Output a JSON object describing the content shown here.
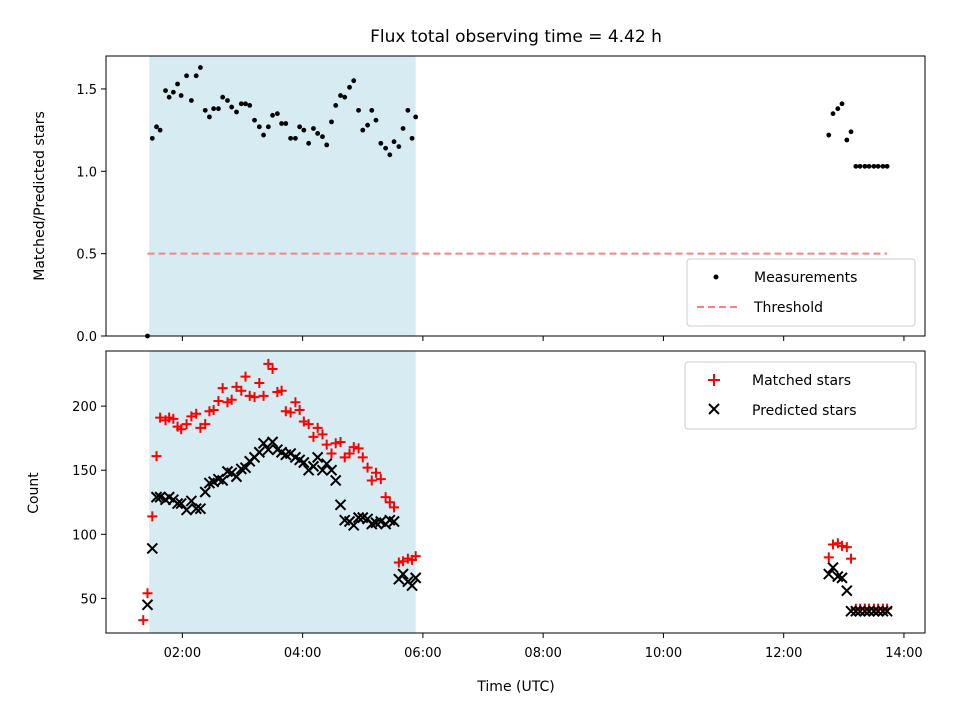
{
  "chart_data": [
    {
      "type": "scatter",
      "title": "Flux total observing time = 4.42 h",
      "ylabel": "Matched/Predicted stars",
      "xlabel": "",
      "x_unit": "hours (UTC)",
      "xlim": [
        0.73,
        14.35
      ],
      "ylim": [
        0,
        1.7
      ],
      "yticks": [
        0.0,
        0.5,
        1.0,
        1.5
      ],
      "ytick_labels": [
        "0.0",
        "0.5",
        "1.0",
        "1.5"
      ],
      "shaded_interval": [
        1.45,
        5.88
      ],
      "shade_color": "#add8e6",
      "grid": false,
      "legend_position": "lower-right",
      "series": [
        {
          "name": "Measurements",
          "marker": "dot",
          "color": "#000000",
          "x": [
            1.42,
            1.5,
            1.57,
            1.63,
            1.72,
            1.78,
            1.85,
            1.92,
            1.98,
            2.07,
            2.15,
            2.23,
            2.3,
            2.38,
            2.45,
            2.52,
            2.6,
            2.67,
            2.75,
            2.82,
            2.9,
            2.98,
            3.05,
            3.12,
            3.2,
            3.28,
            3.35,
            3.43,
            3.5,
            3.58,
            3.65,
            3.72,
            3.8,
            3.88,
            3.95,
            4.02,
            4.1,
            4.18,
            4.25,
            4.33,
            4.4,
            4.48,
            4.55,
            4.63,
            4.7,
            4.78,
            4.85,
            4.93,
            5.0,
            5.08,
            5.15,
            5.22,
            5.3,
            5.38,
            5.45,
            5.52,
            5.6,
            5.67,
            5.75,
            5.82,
            5.88,
            12.75,
            12.82,
            12.9,
            12.97,
            13.05,
            13.12,
            13.2,
            13.27,
            13.35,
            13.42,
            13.5,
            13.57,
            13.65,
            13.72
          ],
          "y": [
            0.0,
            1.2,
            1.27,
            1.25,
            1.49,
            1.45,
            1.48,
            1.53,
            1.46,
            1.58,
            1.43,
            1.58,
            1.63,
            1.37,
            1.33,
            1.38,
            1.38,
            1.45,
            1.43,
            1.39,
            1.36,
            1.41,
            1.41,
            1.4,
            1.31,
            1.27,
            1.22,
            1.27,
            1.34,
            1.35,
            1.29,
            1.29,
            1.2,
            1.2,
            1.27,
            1.25,
            1.17,
            1.26,
            1.23,
            1.21,
            1.16,
            1.3,
            1.4,
            1.46,
            1.45,
            1.51,
            1.55,
            1.37,
            1.25,
            1.28,
            1.37,
            1.31,
            1.17,
            1.14,
            1.1,
            1.18,
            1.15,
            1.26,
            1.37,
            1.2,
            1.33,
            1.22,
            1.35,
            1.38,
            1.41,
            1.19,
            1.24,
            1.03,
            1.03,
            1.03,
            1.03,
            1.03,
            1.03,
            1.03,
            1.03
          ]
        },
        {
          "name": "Threshold",
          "marker": "dashed-line",
          "color": "#ff7f7f",
          "x": [
            1.42,
            13.72
          ],
          "y": [
            0.5,
            0.5
          ]
        }
      ]
    },
    {
      "type": "scatter",
      "title": "",
      "ylabel": "Count",
      "xlabel": "Time (UTC)",
      "x_unit": "hours (UTC)",
      "xlim": [
        0.73,
        14.35
      ],
      "ylim": [
        23,
        243
      ],
      "yticks": [
        50,
        100,
        150,
        200
      ],
      "ytick_labels": [
        "50",
        "100",
        "150",
        "200"
      ],
      "xticks": [
        2,
        4,
        6,
        8,
        10,
        12,
        14
      ],
      "xtick_labels": [
        "02:00",
        "04:00",
        "06:00",
        "08:00",
        "10:00",
        "12:00",
        "14:00"
      ],
      "shaded_interval": [
        1.45,
        5.88
      ],
      "shade_color": "#add8e6",
      "grid": false,
      "legend_position": "upper-right",
      "series": [
        {
          "name": "Matched stars",
          "marker": "plus",
          "color": "#ff0000",
          "x": [
            1.35,
            1.42,
            1.5,
            1.57,
            1.63,
            1.72,
            1.78,
            1.85,
            1.92,
            1.98,
            2.07,
            2.15,
            2.23,
            2.3,
            2.38,
            2.45,
            2.52,
            2.6,
            2.67,
            2.75,
            2.82,
            2.9,
            2.98,
            3.05,
            3.12,
            3.2,
            3.28,
            3.35,
            3.43,
            3.5,
            3.58,
            3.65,
            3.72,
            3.8,
            3.88,
            3.95,
            4.02,
            4.1,
            4.18,
            4.25,
            4.33,
            4.4,
            4.48,
            4.55,
            4.63,
            4.7,
            4.78,
            4.85,
            4.93,
            5.0,
            5.08,
            5.15,
            5.22,
            5.3,
            5.38,
            5.45,
            5.52,
            5.6,
            5.67,
            5.75,
            5.82,
            5.88,
            12.75,
            12.82,
            12.9,
            12.97,
            13.05,
            13.12,
            13.2,
            13.27,
            13.35,
            13.42,
            13.5,
            13.57,
            13.65,
            13.72
          ],
          "y": [
            33,
            54,
            114,
            161,
            191,
            189,
            191,
            190,
            184,
            182,
            186,
            192,
            194,
            183,
            186,
            196,
            197,
            204,
            214,
            203,
            205,
            215,
            212,
            223,
            208,
            207,
            218,
            208,
            233,
            229,
            211,
            212,
            196,
            195,
            203,
            197,
            188,
            186,
            176,
            183,
            178,
            170,
            163,
            171,
            172,
            160,
            163,
            168,
            167,
            160,
            152,
            142,
            148,
            143,
            129,
            125,
            121,
            78,
            79,
            81,
            80,
            83,
            82,
            92,
            93,
            91,
            90,
            81,
            42,
            42,
            42,
            42,
            42,
            42,
            42,
            42
          ]
        },
        {
          "name": "Predicted stars",
          "marker": "x",
          "color": "#000000",
          "x": [
            1.42,
            1.5,
            1.57,
            1.63,
            1.72,
            1.78,
            1.85,
            1.92,
            1.98,
            2.07,
            2.15,
            2.23,
            2.3,
            2.38,
            2.45,
            2.52,
            2.6,
            2.67,
            2.75,
            2.82,
            2.9,
            2.98,
            3.05,
            3.12,
            3.2,
            3.28,
            3.35,
            3.43,
            3.5,
            3.58,
            3.65,
            3.72,
            3.8,
            3.88,
            3.95,
            4.02,
            4.1,
            4.18,
            4.25,
            4.33,
            4.4,
            4.48,
            4.55,
            4.63,
            4.7,
            4.78,
            4.85,
            4.93,
            5.0,
            5.08,
            5.15,
            5.22,
            5.3,
            5.38,
            5.45,
            5.52,
            5.6,
            5.67,
            5.75,
            5.82,
            5.88,
            12.75,
            12.82,
            12.9,
            12.97,
            13.05,
            13.12,
            13.2,
            13.27,
            13.35,
            13.42,
            13.5,
            13.57,
            13.65,
            13.72
          ],
          "y": [
            45,
            89,
            129,
            129,
            127,
            129,
            127,
            124,
            124,
            119,
            126,
            120,
            120,
            133,
            140,
            141,
            143,
            142,
            149,
            148,
            145,
            151,
            152,
            157,
            160,
            164,
            171,
            166,
            172,
            166,
            164,
            162,
            163,
            160,
            158,
            156,
            150,
            153,
            160,
            150,
            155,
            150,
            142,
            123,
            111,
            110,
            107,
            113,
            113,
            112,
            108,
            109,
            110,
            108,
            111,
            110,
            65,
            69,
            63,
            60,
            66,
            69,
            74,
            67,
            66,
            56,
            40,
            40,
            40,
            40,
            40,
            40,
            40,
            40,
            40
          ]
        }
      ]
    }
  ]
}
